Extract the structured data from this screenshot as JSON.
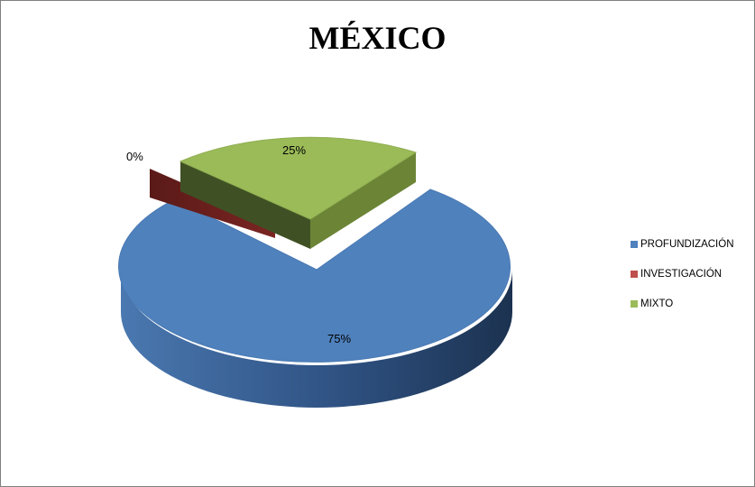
{
  "chart_data": {
    "type": "pie",
    "title": "MÉXICO",
    "categories": [
      "PROFUNDIZACIÓN",
      "INVESTIGACIÓN",
      "MIXTO"
    ],
    "values": [
      75,
      0,
      25
    ],
    "labels": [
      "75%",
      "0%",
      "25%"
    ],
    "colors": [
      "#4f81bd",
      "#c0504d",
      "#9bbb59"
    ],
    "legend_position": "right",
    "style": "3d-exploded"
  }
}
